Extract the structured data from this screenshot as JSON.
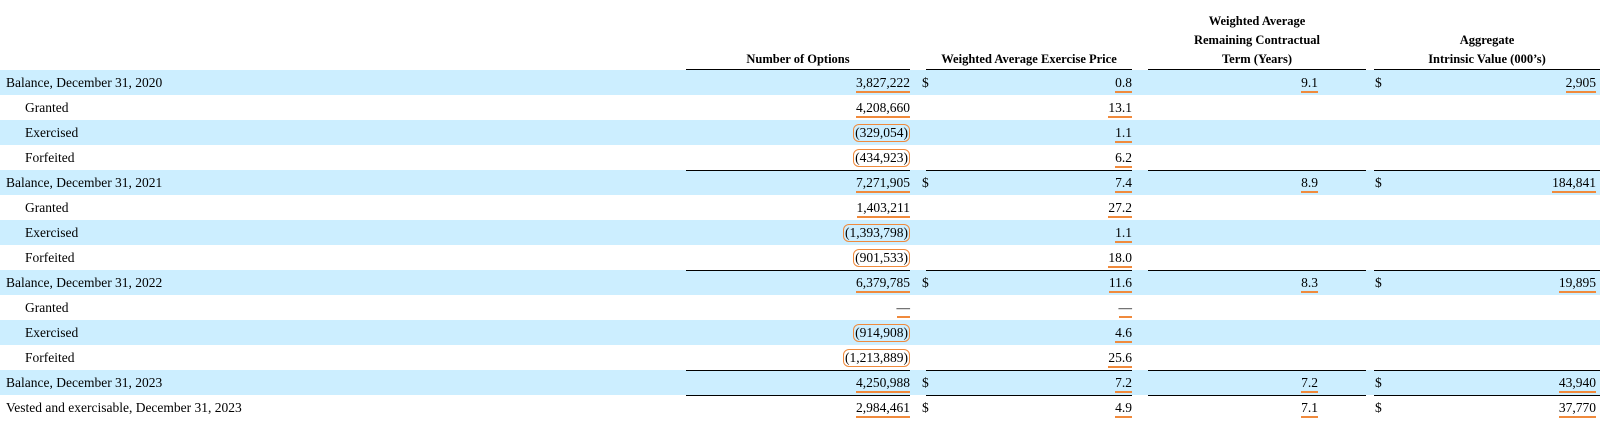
{
  "headers": {
    "options": [
      "Number of Options"
    ],
    "price": [
      "Weighted Average Exercise Price"
    ],
    "term": [
      "Weighted Average",
      "Remaining Contractual",
      "Term (Years)"
    ],
    "intrinsic": [
      "Aggregate",
      "Intrinsic Value (000’s)"
    ]
  },
  "currency_symbol": "$",
  "rows": [
    {
      "label": "Balance, December 31, 2020",
      "indent": false,
      "options": "3,827,222",
      "price": "0.8",
      "term": "9.1",
      "intrinsic": "2,905",
      "dollar": true
    },
    {
      "label": "Granted",
      "indent": true,
      "options": "4,208,660",
      "price": "13.1",
      "term": "",
      "intrinsic": "",
      "dollar": false
    },
    {
      "label": "Exercised",
      "indent": true,
      "options": "(329,054)",
      "price": "1.1",
      "term": "",
      "intrinsic": "",
      "dollar": false
    },
    {
      "label": "Forfeited",
      "indent": true,
      "options": "(434,923)",
      "price": "6.2",
      "term": "",
      "intrinsic": "",
      "dollar": false
    },
    {
      "label": "Balance, December 31, 2021",
      "indent": false,
      "options": "7,271,905",
      "price": "7.4",
      "term": "8.9",
      "intrinsic": "184,841",
      "dollar": true
    },
    {
      "label": "Granted",
      "indent": true,
      "options": "1,403,211",
      "price": "27.2",
      "term": "",
      "intrinsic": "",
      "dollar": false
    },
    {
      "label": "Exercised",
      "indent": true,
      "options": "(1,393,798)",
      "price": "1.1",
      "term": "",
      "intrinsic": "",
      "dollar": false
    },
    {
      "label": "Forfeited",
      "indent": true,
      "options": "(901,533)",
      "price": "18.0",
      "term": "",
      "intrinsic": "",
      "dollar": false
    },
    {
      "label": "Balance, December 31, 2022",
      "indent": false,
      "options": "6,379,785",
      "price": "11.6",
      "term": "8.3",
      "intrinsic": "19,895",
      "dollar": true
    },
    {
      "label": "Granted",
      "indent": true,
      "options": "—",
      "price": "—",
      "term": "",
      "intrinsic": "",
      "dollar": false
    },
    {
      "label": "Exercised",
      "indent": true,
      "options": "(914,908)",
      "price": "4.6",
      "term": "",
      "intrinsic": "",
      "dollar": false
    },
    {
      "label": "Forfeited",
      "indent": true,
      "options": "(1,213,889)",
      "price": "25.6",
      "term": "",
      "intrinsic": "",
      "dollar": false
    },
    {
      "label": "Balance, December 31, 2023",
      "indent": false,
      "options": "4,250,988",
      "price": "7.2",
      "term": "7.2",
      "intrinsic": "43,940",
      "dollar": true
    },
    {
      "label": "Vested and exercisable, December 31, 2023",
      "indent": false,
      "options": "2,984,461",
      "price": "4.9",
      "term": "7.1",
      "intrinsic": "37,770",
      "dollar": true
    }
  ]
}
